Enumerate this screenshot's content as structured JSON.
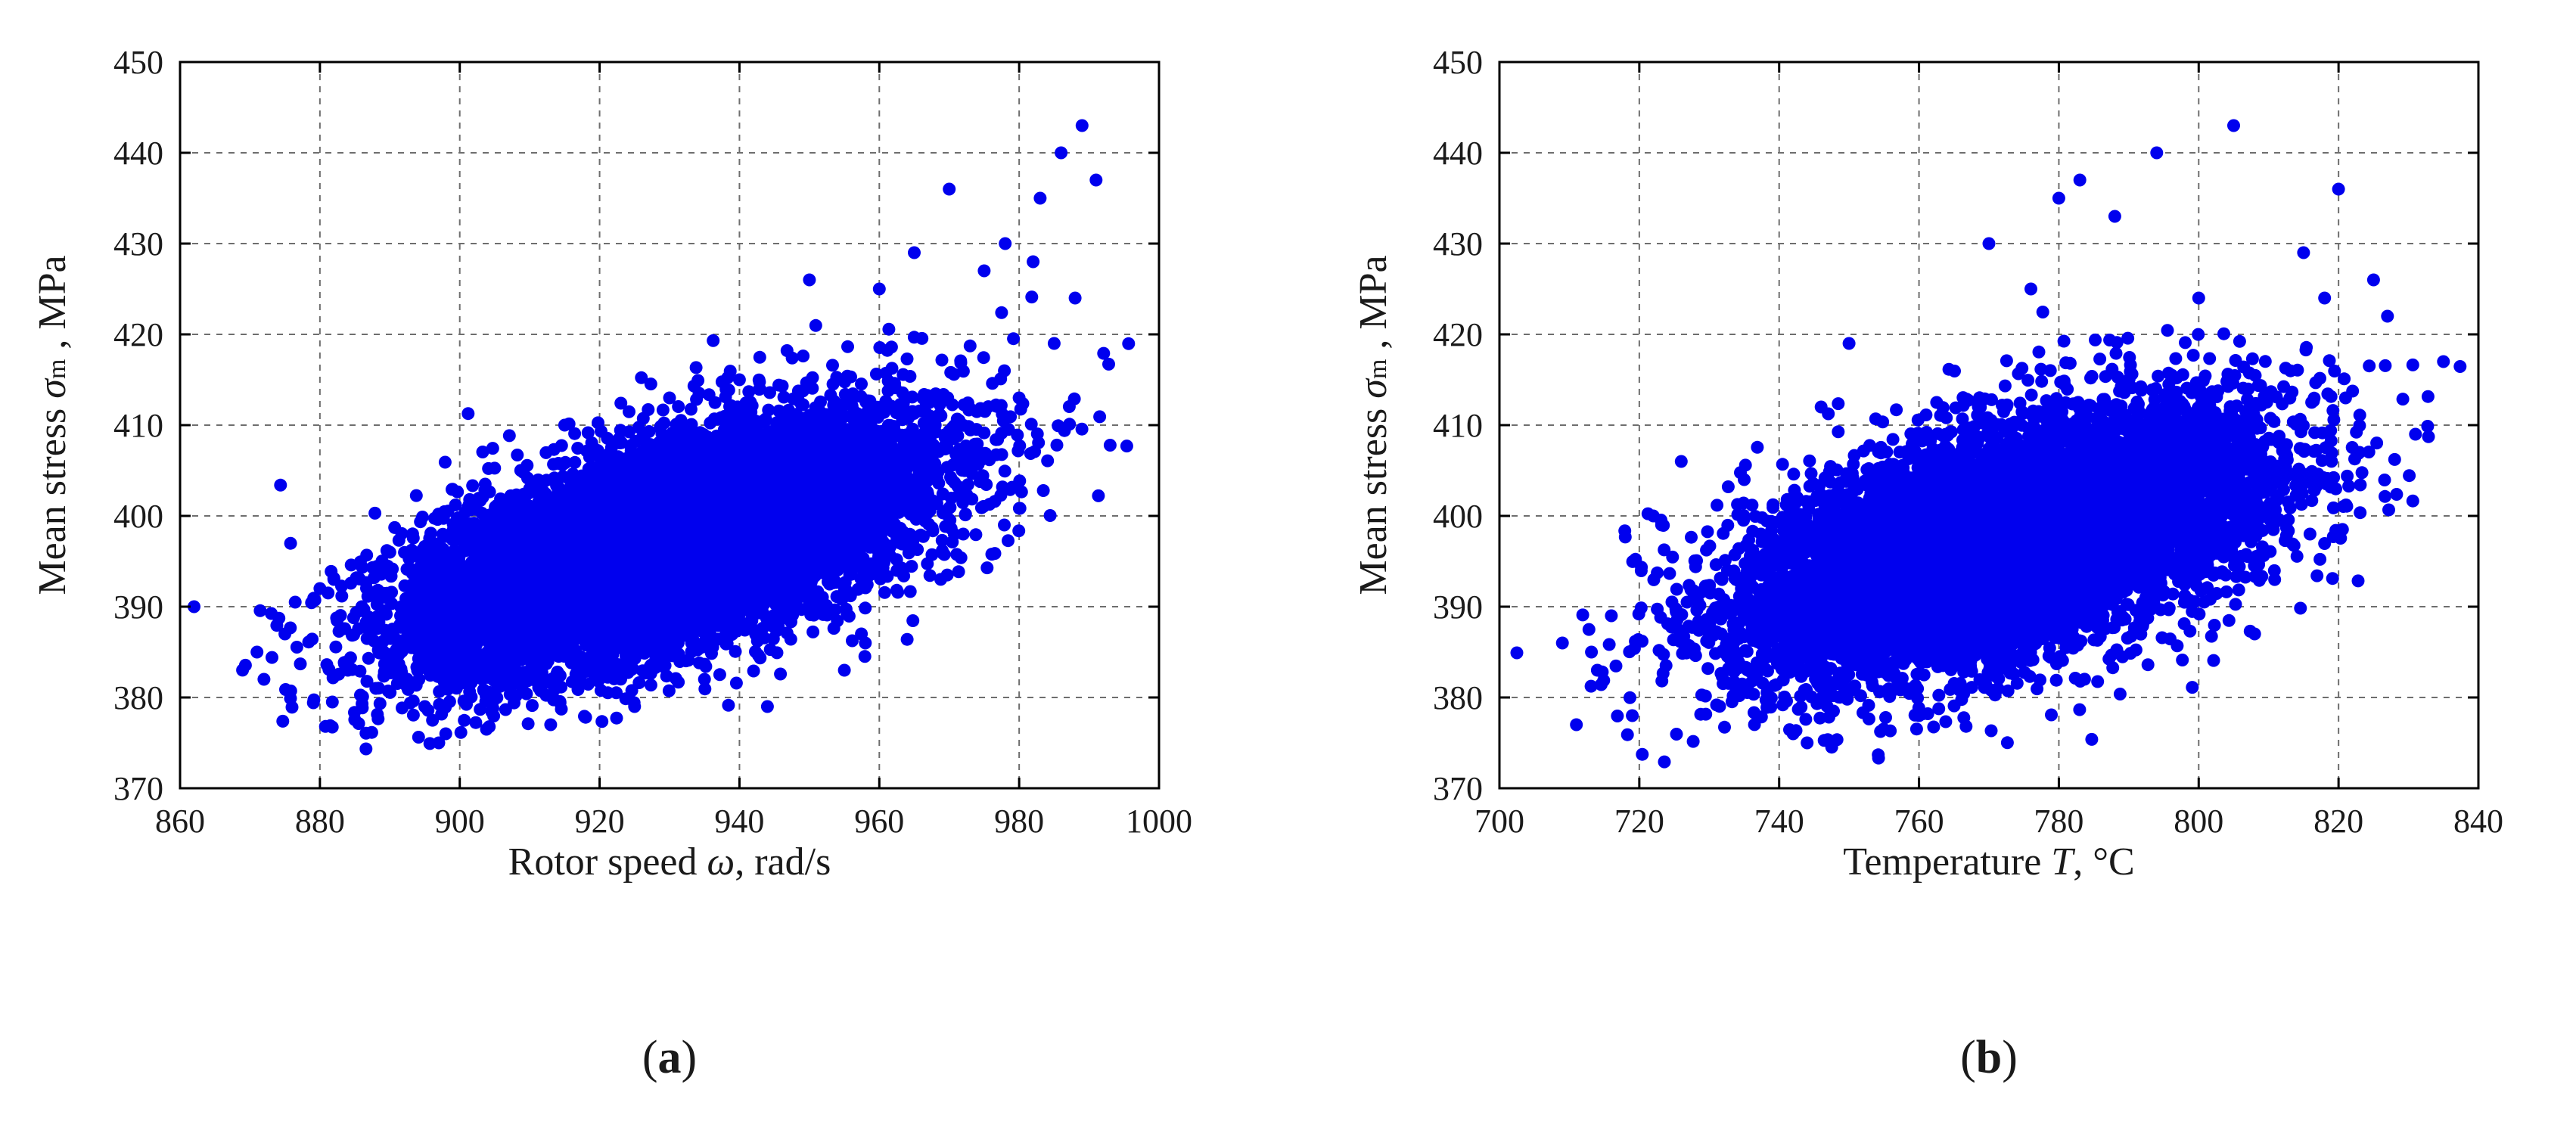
{
  "chart_data": [
    {
      "type": "scatter",
      "panel_label_parts": [
        "(",
        "a",
        ")"
      ],
      "xlabel_parts": [
        "Rotor speed ",
        "ω",
        ", rad/s"
      ],
      "ylabel_parts": [
        "Mean stress ",
        "σ",
        "m",
        " , MPa"
      ],
      "xlim": [
        860,
        1000
      ],
      "ylim": [
        370,
        450
      ],
      "x_ticks": [
        "860",
        "880",
        "900",
        "920",
        "940",
        "960",
        "980",
        "1000"
      ],
      "y_ticks": [
        "370",
        "380",
        "390",
        "400",
        "410",
        "420",
        "430",
        "440",
        "450"
      ],
      "grid": true,
      "marker_color": "#0000ee",
      "point_count_estimate": 10000,
      "trend": {
        "x_center": 930,
        "x_sd": 18,
        "y_at_center": 397,
        "slope": 0.22,
        "y_residual_sd": 5.5
      },
      "series": [
        {
          "x": [
            862,
            871,
            872,
            875,
            880,
            882,
            884,
            886,
            888,
            890,
            892,
            895,
            897,
            898,
            900,
            905,
            910,
            913,
            915,
            920,
            925,
            930,
            935,
            940,
            944,
            950,
            955,
            958,
            960,
            963,
            965,
            968,
            970,
            972,
            975,
            978,
            980,
            982,
            983,
            985,
            986,
            988,
            989,
            991
          ],
          "y": [
            390,
            385,
            382,
            387,
            392,
            393,
            383,
            390,
            381,
            396,
            386,
            379,
            375,
            376,
            399,
            388,
            403,
            377,
            410,
            402,
            379,
            413,
            382,
            415,
            379,
            426,
            383,
            386,
            425,
            397,
            429,
            410,
            436,
            398,
            427,
            430,
            413,
            428,
            435,
            419,
            440,
            424,
            443,
            437
          ]
        }
      ]
    },
    {
      "type": "scatter",
      "panel_label_parts": [
        "(",
        "b",
        ")"
      ],
      "xlabel_parts": [
        "Temperature ",
        "T",
        ", °C"
      ],
      "ylabel_parts": [
        "Mean stress ",
        "σ",
        "m",
        " , MPa"
      ],
      "xlim": [
        700,
        840
      ],
      "ylim": [
        370,
        450
      ],
      "x_ticks": [
        "700",
        "720",
        "740",
        "760",
        "780",
        "800",
        "820",
        "840"
      ],
      "y_ticks": [
        "370",
        "380",
        "390",
        "400",
        "410",
        "420",
        "430",
        "440",
        "450"
      ],
      "grid": true,
      "marker_color": "#0000ee",
      "point_count_estimate": 10000,
      "trend": {
        "x_center": 772,
        "x_sd": 18,
        "y_at_center": 397,
        "slope": 0.2,
        "y_residual_sd": 6
      },
      "series": [
        {
          "x": [
            709,
            711,
            714,
            716,
            719,
            722,
            726,
            730,
            735,
            742,
            744,
            746,
            750,
            760,
            770,
            776,
            780,
            783,
            788,
            794,
            800,
            805,
            808,
            815,
            818,
            820,
            821,
            823,
            825,
            827,
            831,
            835
          ],
          "y": [
            386,
            377,
            383,
            389,
            378,
            400,
            406,
            392,
            404,
            376,
            375,
            412,
            419,
            378,
            430,
            425,
            435,
            437,
            433,
            440,
            424,
            443,
            387,
            429,
            424,
            436,
            413,
            407,
            426,
            422,
            409,
            417
          ]
        }
      ]
    }
  ]
}
